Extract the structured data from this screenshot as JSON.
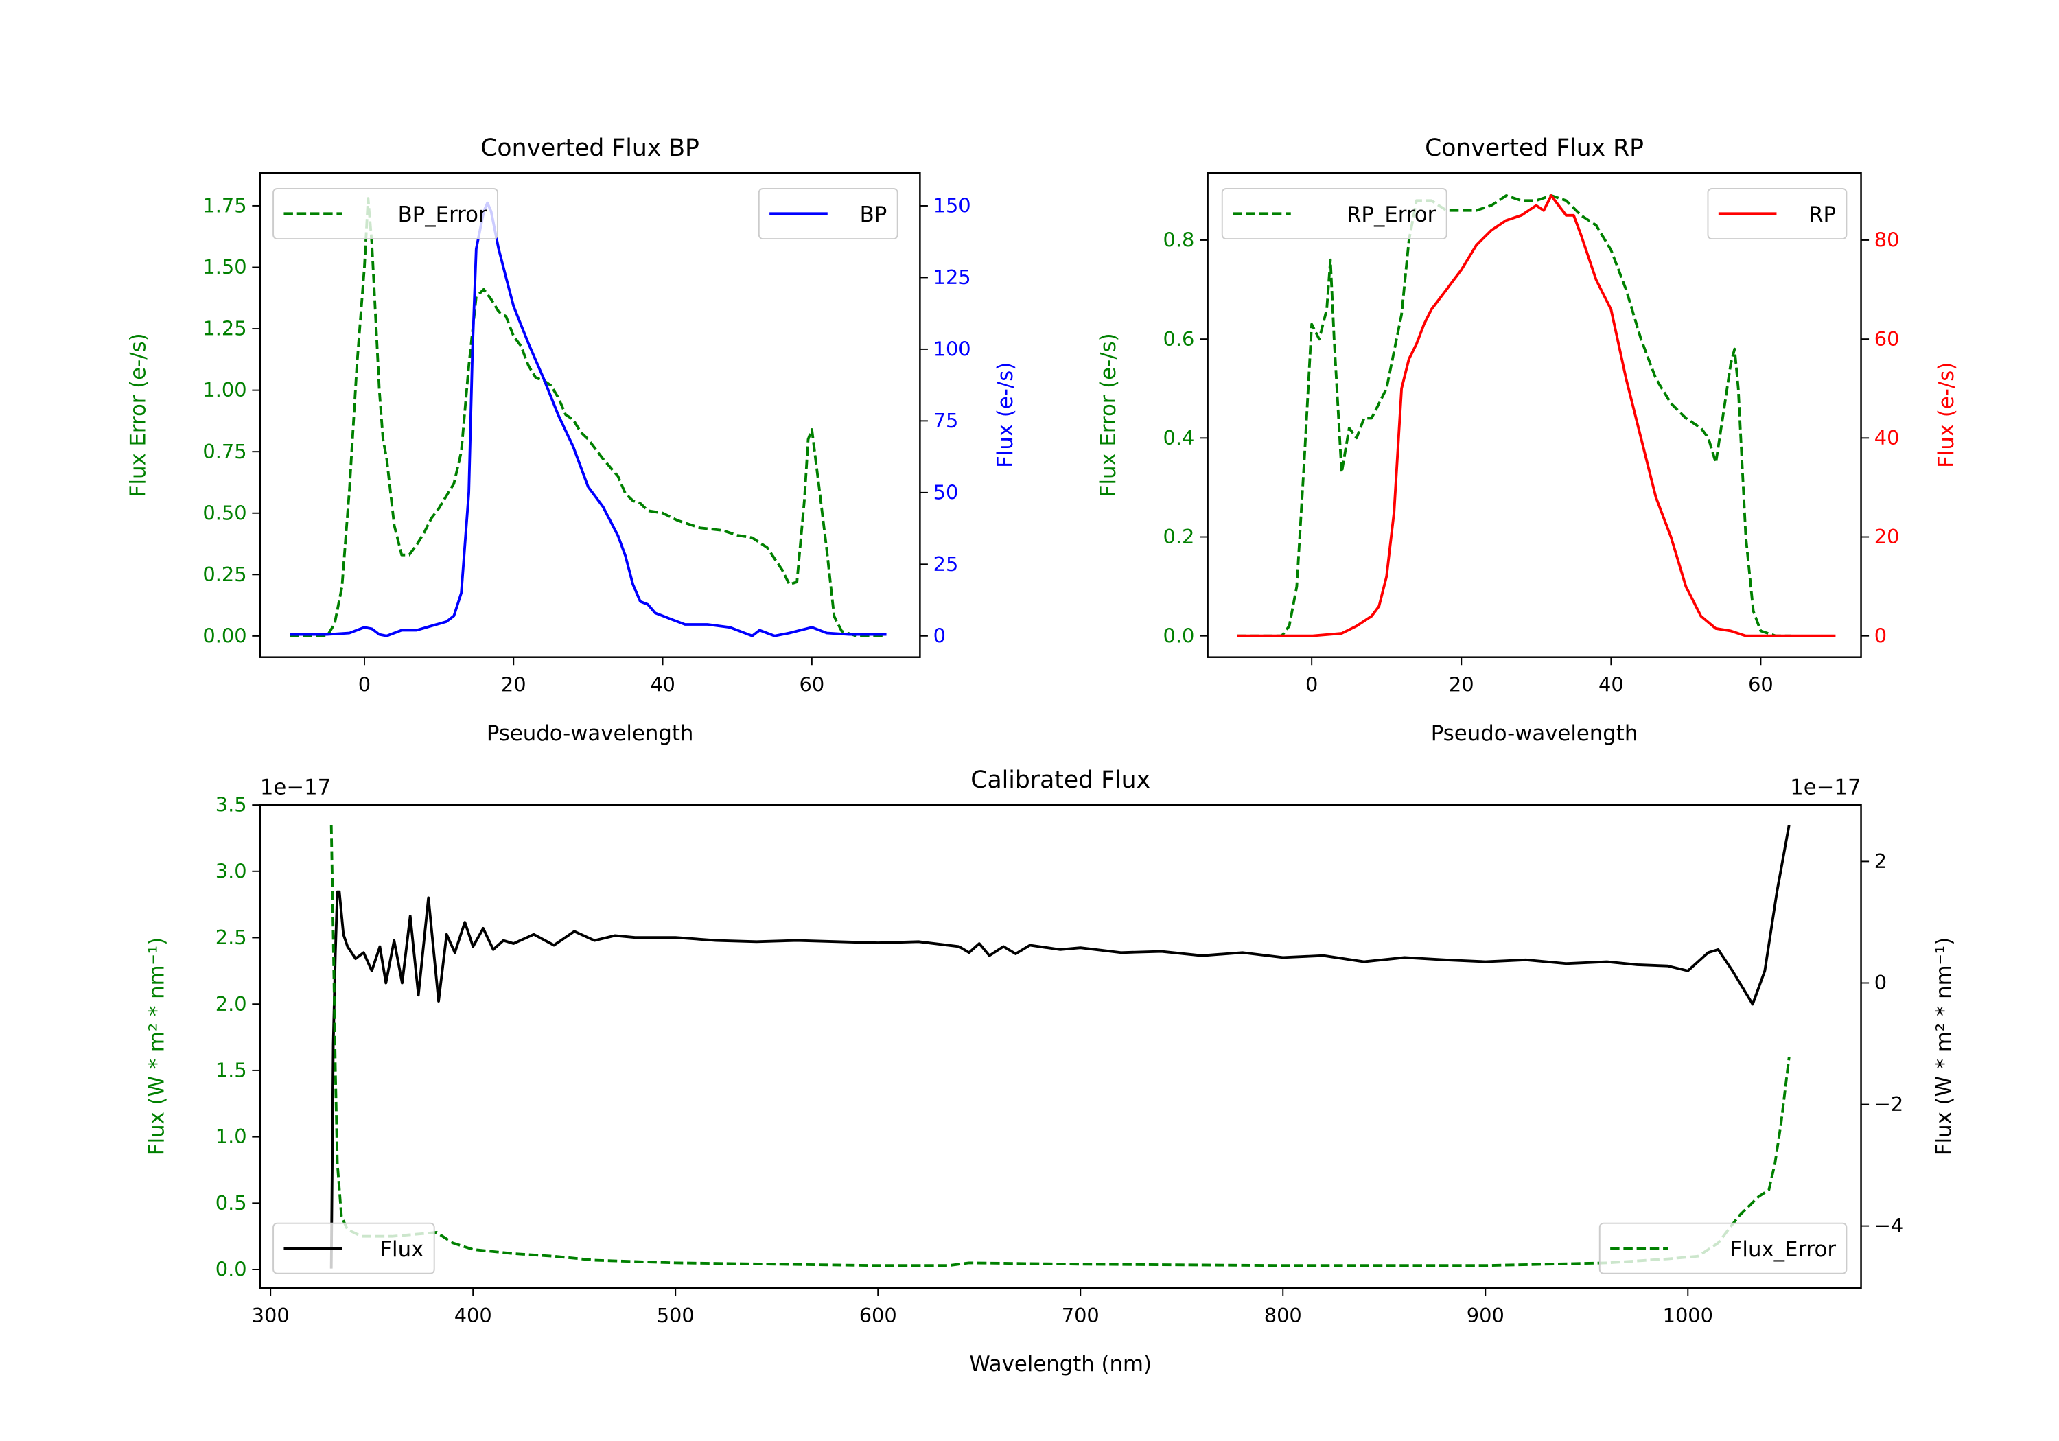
{
  "colors": {
    "green": "#008000",
    "blue": "#0000ff",
    "red": "#ff0000",
    "black": "#000000"
  },
  "chart_data": [
    {
      "type": "line",
      "title": "Converted Flux BP",
      "xlabel": "Pseudo-wavelength",
      "ylabel_left": "Flux Error (e-/s)",
      "ylabel_right": "Flux (e-/s)",
      "xlim": [
        -14,
        74.5
      ],
      "ylim_left": [
        -0.086,
        1.884
      ],
      "ylim_right": [
        -7.4,
        161.5
      ],
      "xticks": [
        0,
        20,
        40,
        60
      ],
      "xtick_labels": [
        "0",
        "20",
        "40",
        "60"
      ],
      "yticks_left": [
        0,
        0.25,
        0.5,
        0.75,
        1.0,
        1.25,
        1.5,
        1.75
      ],
      "ytick_labels_left": [
        "0.00",
        "0.25",
        "0.50",
        "0.75",
        "1.00",
        "1.25",
        "1.50",
        "1.75"
      ],
      "yticks_right": [
        0,
        25,
        50,
        75,
        100,
        125,
        150
      ],
      "ytick_labels_right": [
        "0",
        "25",
        "50",
        "75",
        "100",
        "125",
        "150"
      ],
      "left_color": "#008000",
      "right_color": "#0000ff",
      "series": [
        {
          "name": "BP_Error",
          "axis": "left",
          "style": "dashed",
          "color": "#008000",
          "legend": "upper-left",
          "x": [
            -10,
            -5,
            -4,
            -3,
            -2,
            -1,
            0,
            0.5,
            1,
            2,
            2.5,
            3,
            4,
            5,
            6,
            7,
            8,
            9,
            10,
            11,
            12,
            13,
            14,
            15,
            16,
            17,
            18,
            19,
            20,
            21,
            22,
            23,
            24,
            25,
            26,
            27,
            28,
            29,
            30,
            32,
            34,
            35,
            36,
            37,
            38,
            40,
            42,
            45,
            48,
            50,
            52,
            54,
            56,
            57,
            58,
            59,
            59.5,
            60,
            61,
            62,
            63,
            64,
            66,
            70
          ],
          "y": [
            0,
            0,
            0.05,
            0.2,
            0.6,
            1.1,
            1.5,
            1.78,
            1.6,
            1.0,
            0.8,
            0.72,
            0.45,
            0.33,
            0.33,
            0.37,
            0.42,
            0.48,
            0.52,
            0.57,
            0.62,
            0.75,
            1.1,
            1.38,
            1.41,
            1.37,
            1.32,
            1.3,
            1.22,
            1.18,
            1.1,
            1.05,
            1.04,
            1.02,
            0.97,
            0.9,
            0.88,
            0.83,
            0.8,
            0.72,
            0.65,
            0.58,
            0.55,
            0.54,
            0.51,
            0.5,
            0.47,
            0.44,
            0.43,
            0.41,
            0.4,
            0.36,
            0.27,
            0.21,
            0.22,
            0.55,
            0.8,
            0.84,
            0.6,
            0.35,
            0.08,
            0.02,
            0,
            0
          ]
        },
        {
          "name": "BP",
          "axis": "right",
          "style": "solid",
          "color": "#0000ff",
          "legend": "upper-right",
          "x": [
            -10,
            -5,
            -2,
            0,
            1,
            2,
            3,
            5,
            7,
            9,
            11,
            12,
            13,
            14,
            14.5,
            15,
            16,
            16.5,
            17,
            18,
            19,
            20,
            22,
            24,
            26,
            28,
            30,
            32,
            34,
            35,
            36,
            37,
            38,
            39,
            40,
            41,
            43,
            46,
            49,
            51,
            52,
            53,
            55,
            57,
            60,
            62,
            65,
            70
          ],
          "y": [
            0.5,
            0.5,
            1,
            3,
            2.5,
            0.5,
            0,
            2,
            2,
            3.5,
            5,
            7,
            15,
            50,
            100,
            135,
            148,
            151,
            148,
            135,
            125,
            115,
            102,
            90,
            77,
            66,
            52,
            45,
            35,
            28,
            18,
            12,
            11,
            8,
            7,
            6,
            4,
            4,
            3,
            1,
            0,
            2,
            0,
            1,
            3,
            1,
            0.5,
            0.5
          ]
        }
      ]
    },
    {
      "type": "line",
      "title": "Converted Flux RP",
      "xlabel": "Pseudo-wavelength",
      "ylabel_left": "Flux Error (e-/s)",
      "ylabel_right": "Flux (e-/s)",
      "xlim": [
        -13.9,
        73.4
      ],
      "ylim_left": [
        -0.043,
        0.936
      ],
      "ylim_right": [
        -4.3,
        93.6
      ],
      "xticks": [
        0,
        20,
        40,
        60
      ],
      "xtick_labels": [
        "0",
        "20",
        "40",
        "60"
      ],
      "yticks_left": [
        0,
        0.2,
        0.4,
        0.6,
        0.8
      ],
      "ytick_labels_left": [
        "0.0",
        "0.2",
        "0.4",
        "0.6",
        "0.8"
      ],
      "yticks_right": [
        0,
        20,
        40,
        60,
        80
      ],
      "ytick_labels_right": [
        "0",
        "20",
        "40",
        "60",
        "80"
      ],
      "left_color": "#008000",
      "right_color": "#ff0000",
      "series": [
        {
          "name": "RP_Error",
          "axis": "left",
          "style": "dashed",
          "color": "#008000",
          "legend": "upper-left",
          "x": [
            -10,
            -4,
            -3,
            -2,
            -1,
            0,
            1,
            2,
            2.5,
            3,
            4,
            5,
            6,
            7,
            8,
            10,
            12,
            13,
            14,
            16,
            18,
            22,
            24,
            26,
            28,
            30,
            32,
            34,
            36,
            38,
            40,
            42,
            44,
            46,
            48,
            50,
            52,
            53,
            54,
            55,
            56,
            56.5,
            57,
            58,
            59,
            60,
            62,
            64
          ],
          "y": [
            0,
            0,
            0.02,
            0.1,
            0.35,
            0.63,
            0.6,
            0.66,
            0.76,
            0.6,
            0.33,
            0.42,
            0.4,
            0.44,
            0.44,
            0.5,
            0.65,
            0.8,
            0.88,
            0.88,
            0.86,
            0.86,
            0.87,
            0.89,
            0.88,
            0.88,
            0.89,
            0.88,
            0.85,
            0.83,
            0.78,
            0.7,
            0.6,
            0.52,
            0.47,
            0.44,
            0.42,
            0.4,
            0.35,
            0.45,
            0.55,
            0.58,
            0.5,
            0.2,
            0.05,
            0.01,
            0,
            0
          ]
        },
        {
          "name": "RP",
          "axis": "right",
          "style": "solid",
          "color": "#ff0000",
          "legend": "upper-right",
          "x": [
            -10,
            -2,
            0,
            4,
            6,
            8,
            9,
            10,
            11,
            12,
            13,
            14,
            15,
            16,
            17,
            18,
            19,
            20,
            22,
            24,
            26,
            28,
            30,
            31,
            32,
            33,
            34,
            35,
            36,
            38,
            40,
            42,
            44,
            46,
            48,
            50,
            52,
            54,
            56,
            58,
            62,
            70
          ],
          "y": [
            0,
            0,
            0,
            0.5,
            2,
            4,
            6,
            12,
            25,
            50,
            56,
            59,
            63,
            66,
            68,
            70,
            72,
            74,
            79,
            82,
            84,
            85,
            87,
            86,
            89,
            87,
            85,
            85,
            81,
            72,
            66,
            52,
            40,
            28,
            20,
            10,
            4,
            1.5,
            1,
            0,
            0,
            0
          ]
        }
      ]
    },
    {
      "type": "line",
      "title": "Calibrated Flux",
      "xlabel": "Wavelength (nm)",
      "ylabel_left": "Flux (W * m² * nm⁻¹)",
      "ylabel_right": "Flux (W * m² * nm⁻¹)",
      "offset_left": "1e−17",
      "offset_right": "1e−17",
      "xlim": [
        294.8,
        1085.5
      ],
      "ylim_left": [
        -0.139,
        3.5
      ],
      "ylim_right": [
        -5.02,
        2.93
      ],
      "xticks": [
        300,
        400,
        500,
        600,
        700,
        800,
        900,
        1000
      ],
      "xtick_labels": [
        "300",
        "400",
        "500",
        "600",
        "700",
        "800",
        "900",
        "1000"
      ],
      "yticks_left": [
        0,
        0.5,
        1.0,
        1.5,
        2.0,
        2.5,
        3.0,
        3.5
      ],
      "ytick_labels_left": [
        "0.0",
        "0.5",
        "1.0",
        "1.5",
        "2.0",
        "2.5",
        "3.0",
        "3.5"
      ],
      "yticks_right": [
        -4,
        -2,
        0,
        2
      ],
      "ytick_labels_right": [
        "−4",
        "−2",
        "0",
        "2"
      ],
      "left_color": "#008000",
      "right_color": "#000000",
      "series": [
        {
          "name": "Flux",
          "axis": "right",
          "style": "solid",
          "color": "#000000",
          "legend": "lower-left",
          "x": [
            330,
            331,
            332,
            333,
            334,
            336,
            338,
            342,
            346,
            350,
            354,
            357,
            361,
            365,
            369,
            373,
            378,
            383,
            387,
            391,
            396,
            400,
            405,
            410,
            415,
            420,
            430,
            440,
            450,
            460,
            470,
            480,
            500,
            520,
            540,
            560,
            580,
            600,
            620,
            640,
            645,
            650,
            655,
            662,
            668,
            675,
            690,
            700,
            720,
            740,
            760,
            780,
            800,
            820,
            840,
            860,
            880,
            900,
            920,
            940,
            960,
            975,
            990,
            1000,
            1010,
            1015,
            1022,
            1032,
            1038,
            1044,
            1050
          ],
          "y": [
            -4.7,
            -1,
            0.5,
            1.5,
            1.5,
            0.8,
            0.6,
            0.4,
            0.5,
            0.2,
            0.6,
            0.0,
            0.7,
            0.0,
            1.1,
            -0.2,
            1.4,
            -0.3,
            0.8,
            0.5,
            1.0,
            0.6,
            0.9,
            0.55,
            0.7,
            0.65,
            0.8,
            0.62,
            0.85,
            0.7,
            0.78,
            0.75,
            0.75,
            0.7,
            0.68,
            0.7,
            0.68,
            0.66,
            0.68,
            0.6,
            0.5,
            0.65,
            0.45,
            0.6,
            0.48,
            0.62,
            0.55,
            0.58,
            0.5,
            0.52,
            0.45,
            0.5,
            0.42,
            0.45,
            0.35,
            0.42,
            0.38,
            0.35,
            0.38,
            0.32,
            0.35,
            0.3,
            0.28,
            0.2,
            0.5,
            0.55,
            0.2,
            -0.35,
            0.2,
            1.5,
            2.6
          ]
        },
        {
          "name": "Flux_Error",
          "axis": "left",
          "style": "dashed",
          "color": "#008000",
          "legend": "lower-right",
          "x": [
            330,
            331,
            332,
            333,
            335,
            338,
            345,
            360,
            375,
            382,
            390,
            400,
            420,
            440,
            460,
            500,
            550,
            600,
            635,
            645,
            700,
            800,
            900,
            960,
            990,
            1005,
            1015,
            1025,
            1035,
            1040,
            1043,
            1046,
            1050
          ],
          "y": [
            3.35,
            2.5,
            1.5,
            0.8,
            0.4,
            0.3,
            0.25,
            0.25,
            0.27,
            0.28,
            0.2,
            0.15,
            0.12,
            0.1,
            0.07,
            0.05,
            0.04,
            0.03,
            0.03,
            0.05,
            0.04,
            0.03,
            0.03,
            0.05,
            0.08,
            0.1,
            0.2,
            0.4,
            0.55,
            0.6,
            0.8,
            1.1,
            1.6
          ]
        }
      ]
    }
  ]
}
